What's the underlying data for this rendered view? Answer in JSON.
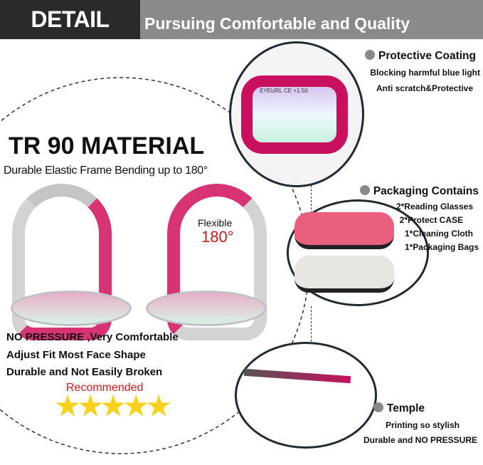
{
  "header": {
    "title": "DETAIL",
    "subtitle": "Pursuing Comfortable and Quality"
  },
  "main": {
    "heading": "TR 90 MATERIAL",
    "subheading": "Durable Elastic Frame Bending up to 180°",
    "flex_label": "Flexible",
    "flex_angle": "180°",
    "features": [
      "NO PRESSURE ,Very Comfortable",
      "Adjust Fit Most Face Shape",
      "Durable and Not Easily Broken"
    ],
    "recommended": "Recommended",
    "rating": 5,
    "rating_max": 5
  },
  "details": [
    {
      "title": "Protective Coating",
      "lines": [
        "Blocking harmful blue light",
        "Anti scratch&Protective"
      ]
    },
    {
      "title": "Packaging Contains",
      "lines": [
        "2*Reading Glasses",
        "2*Protect CASE",
        "1*Cleaning Cloth",
        "1*Packaging Bags"
      ]
    },
    {
      "title": "Temple",
      "lines": [
        "Printing so stylish",
        "Durable and NO PRESSURE"
      ]
    }
  ],
  "frame_print": "EYEURL CE +1.50",
  "colors": {
    "frame": "#d0115a",
    "header_dark": "#2b2a2b",
    "header_gray": "#8a8a8a",
    "stars": "#f7d21c",
    "recommended": "#d21a1a"
  }
}
